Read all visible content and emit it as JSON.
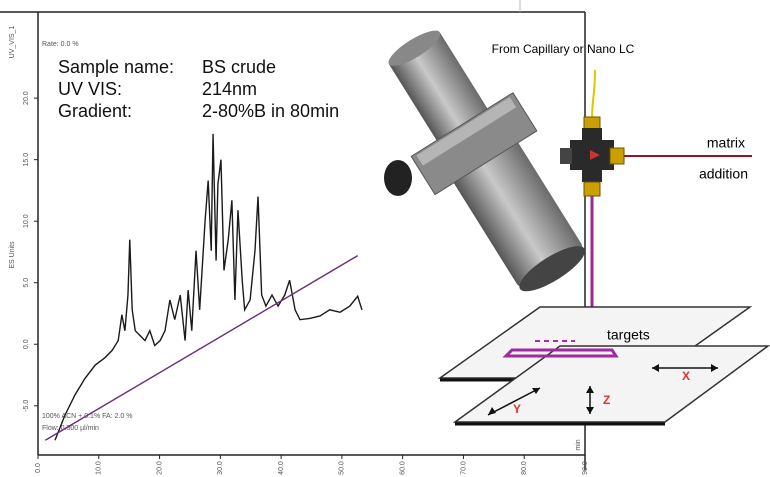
{
  "chart_data": {
    "type": "line",
    "y_label": "ES Units",
    "x_label": "min",
    "annotations": [
      "UV_VIS_1",
      "Rate: 0.0 %",
      "100% ACN + 0.1% FA: 2.0 %",
      "Flow: 0.300 µl/min"
    ],
    "sample_info": [
      [
        "Sample name:",
        "BS crude"
      ],
      [
        "UV VIS:",
        "214nm"
      ],
      [
        "Gradient:",
        "2-80%B in 80min"
      ]
    ],
    "xlim": [
      0,
      90
    ],
    "xticks": [
      {
        "value": 0,
        "label": "0.0"
      },
      {
        "value": 10,
        "label": "10.0"
      },
      {
        "value": 20,
        "label": "20.0"
      },
      {
        "value": 30,
        "label": "30.0"
      },
      {
        "value": 40,
        "label": "40.0"
      },
      {
        "value": 50,
        "label": "50.0"
      },
      {
        "value": 60,
        "label": "60.0"
      },
      {
        "value": 70,
        "label": "70.0"
      },
      {
        "value": 80,
        "label": "80.0"
      },
      {
        "value": 90,
        "label": "90.0"
      }
    ],
    "ylim": [
      -9,
      27
    ],
    "yticks": [
      {
        "value": -5,
        "label": "-5.0"
      },
      {
        "value": 0,
        "label": "0.0"
      },
      {
        "value": 5,
        "label": "5.0"
      },
      {
        "value": 10,
        "label": "10.0"
      },
      {
        "value": 15,
        "label": "15.0"
      },
      {
        "value": 20,
        "label": "20.0"
      }
    ],
    "series": [
      {
        "color": "#1a1a1a",
        "x": [
          2.8,
          4.4,
          6.1,
          7.7,
          9.4,
          11.0,
          12.2,
          13.2,
          13.8,
          14.3,
          14.8,
          15.1,
          15.5,
          16.0,
          16.8,
          17.6,
          18.4,
          19.2,
          20.1,
          20.9,
          21.7,
          22.5,
          23.4,
          24.2,
          24.7,
          25.3,
          26.0,
          26.6,
          27.5,
          28.0,
          28.5,
          28.8,
          29.3,
          29.6,
          30.1,
          30.6,
          31.3,
          31.9,
          32.4,
          32.9,
          33.6,
          34.0,
          34.9,
          35.7,
          36.2,
          36.8,
          37.5,
          38.5,
          39.5,
          40.6,
          41.4,
          42.3,
          43.1,
          44.7,
          46.4,
          48.0,
          49.7,
          51.3,
          52.6,
          53.3
        ],
        "values": [
          -7.8,
          -5.8,
          -4.1,
          -2.8,
          -1.7,
          -1.1,
          -0.5,
          0.3,
          2.4,
          1.1,
          4.0,
          8.5,
          2.8,
          1.1,
          0.7,
          0.3,
          1.1,
          -0.1,
          0.3,
          1.1,
          3.6,
          2.0,
          4.0,
          0.3,
          4.4,
          1.1,
          7.6,
          2.8,
          10.1,
          13.3,
          7.6,
          17.1,
          6.8,
          13.0,
          15.0,
          6.0,
          8.5,
          11.7,
          3.6,
          10.9,
          5.2,
          2.8,
          3.6,
          7.6,
          12.0,
          4.0,
          3.1,
          4.0,
          3.1,
          4.0,
          5.2,
          2.8,
          2.0,
          2.1,
          2.3,
          2.8,
          2.6,
          3.1,
          3.9,
          2.8
        ]
      },
      {
        "color": "#6a2c7a",
        "x": [
          1.2,
          52.6
        ],
        "values": [
          -7.8,
          7.2
        ]
      }
    ]
  },
  "diagram": {
    "source": "From Capillary or Nano LC",
    "matrix": "matrix",
    "addition": "addition",
    "targets": "targets",
    "axis_x": "X",
    "axis_y": "Y",
    "axis_z": "Z"
  }
}
